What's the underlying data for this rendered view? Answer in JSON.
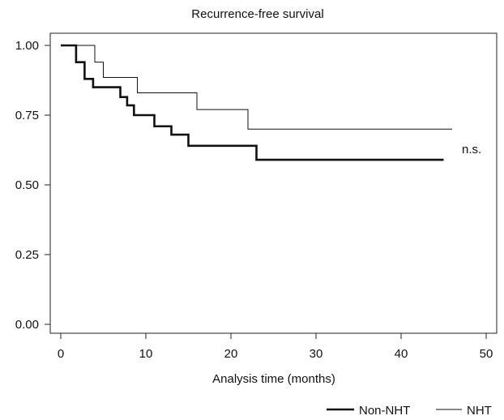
{
  "chart_data": {
    "type": "line",
    "title": "Recurrence-free survival",
    "xlabel": "Analysis time (months)",
    "ylabel": "",
    "xlim": [
      0,
      50
    ],
    "ylim": [
      0,
      1
    ],
    "xticks": [
      0,
      10,
      20,
      30,
      40,
      50
    ],
    "yticks": [
      0,
      0.25,
      0.5,
      0.75,
      1
    ],
    "xtick_labels": [
      "0",
      "10",
      "20",
      "30",
      "40",
      "50"
    ],
    "ytick_labels": [
      "0.00",
      "0.25",
      "0.50",
      "0.75",
      "1.00"
    ],
    "grid": false,
    "legend_position": "bottom-right",
    "annotation": "n.s.",
    "series": [
      {
        "name": "Non-NHT",
        "step": true,
        "color": "#111111",
        "thick": true,
        "x": [
          0,
          1.8,
          2.8,
          3.8,
          7,
          7.8,
          8.6,
          9.4,
          11,
          13,
          15,
          23,
          45
        ],
        "y": [
          1.0,
          0.94,
          0.88,
          0.85,
          0.815,
          0.785,
          0.75,
          0.75,
          0.71,
          0.68,
          0.64,
          0.59,
          0.59
        ]
      },
      {
        "name": "NHT",
        "step": true,
        "color": "#111111",
        "thick": false,
        "x": [
          0,
          4,
          5,
          9,
          16,
          22,
          46
        ],
        "y": [
          1.0,
          0.94,
          0.885,
          0.83,
          0.77,
          0.7,
          0.7
        ]
      }
    ]
  }
}
